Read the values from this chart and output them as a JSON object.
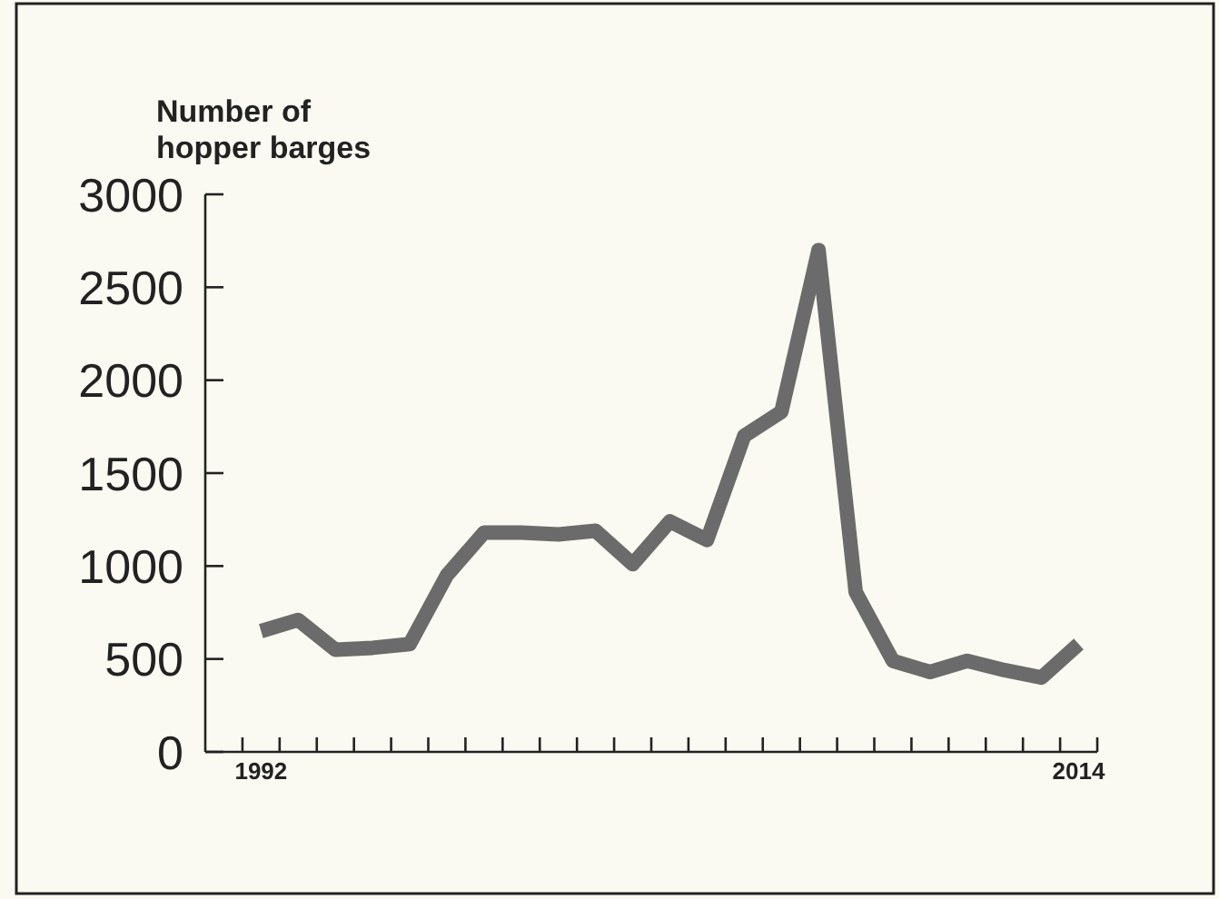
{
  "chart_data": {
    "type": "line",
    "ylabel": "Number of hopper barges",
    "x": [
      1992,
      1993,
      1994,
      1995,
      1996,
      1997,
      1998,
      1999,
      2000,
      2001,
      2002,
      2003,
      2004,
      2005,
      2006,
      2007,
      2008,
      2009,
      2010,
      2011,
      2012,
      2013,
      2014
    ],
    "values": [
      650,
      710,
      550,
      560,
      580,
      950,
      1180,
      1180,
      1170,
      1190,
      1010,
      1240,
      1140,
      1700,
      1830,
      2700,
      860,
      490,
      430,
      490,
      440,
      400,
      580
    ],
    "color": "#6b6b6b",
    "xlim": [
      1990.5,
      2014.5
    ],
    "xticks": [
      {
        "value": 1991.5,
        "label": null
      },
      {
        "value": 1992,
        "label": "1992"
      },
      {
        "value": 1992.5,
        "label": null
      },
      {
        "value": 1993.5,
        "label": null
      },
      {
        "value": 1994.5,
        "label": null
      },
      {
        "value": 1995.5,
        "label": null
      },
      {
        "value": 1996.5,
        "label": null
      },
      {
        "value": 1997.5,
        "label": null
      },
      {
        "value": 1998.5,
        "label": null
      },
      {
        "value": 1999.5,
        "label": null
      },
      {
        "value": 2000.5,
        "label": null
      },
      {
        "value": 2001.5,
        "label": null
      },
      {
        "value": 2002.5,
        "label": null
      },
      {
        "value": 2003.5,
        "label": null
      },
      {
        "value": 2004.5,
        "label": null
      },
      {
        "value": 2005.5,
        "label": null
      },
      {
        "value": 2006.5,
        "label": null
      },
      {
        "value": 2007.5,
        "label": null
      },
      {
        "value": 2008.5,
        "label": null
      },
      {
        "value": 2009.5,
        "label": null
      },
      {
        "value": 2010.5,
        "label": null
      },
      {
        "value": 2011.5,
        "label": null
      },
      {
        "value": 2012.5,
        "label": null
      },
      {
        "value": 2013.5,
        "label": null
      },
      {
        "value": 2014,
        "label": "2014"
      },
      {
        "value": 2014.5,
        "label": null
      }
    ],
    "ylim": [
      0,
      3000
    ],
    "yticks": [
      0,
      500,
      1000,
      1500,
      2000,
      2500,
      3000
    ]
  }
}
